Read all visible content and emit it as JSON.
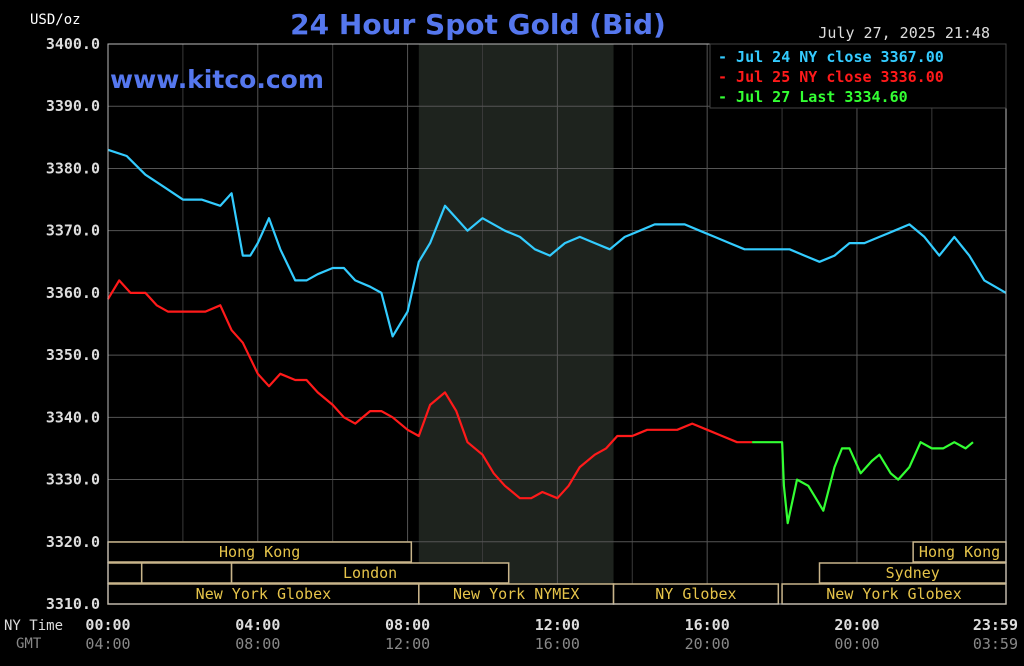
{
  "chart_data": {
    "type": "line",
    "title": "24 Hour Spot Gold (Bid)",
    "ylabel": "USD/oz",
    "watermark": "www.kitco.com",
    "timestamp": "July 27, 2025 21:48",
    "ylim": [
      3310,
      3400
    ],
    "yticks": [
      "3400.0",
      "3390.0",
      "3380.0",
      "3370.0",
      "3360.0",
      "3350.0",
      "3340.0",
      "3330.0",
      "3320.0",
      "3310.0"
    ],
    "x_row_labels": {
      "ny": "NY Time",
      "gmt": "GMT"
    },
    "x_ticks_ny": [
      "00:00",
      "04:00",
      "08:00",
      "12:00",
      "16:00",
      "20:00",
      "23:59"
    ],
    "x_ticks_gmt": [
      "04:00",
      "08:00",
      "12:00",
      "16:00",
      "20:00",
      "00:00",
      "03:59"
    ],
    "legend": [
      {
        "label": "Jul 24 NY close 3367.00",
        "color": "#33ccff"
      },
      {
        "label": "Jul 25 NY close 3336.00",
        "color": "#ff1a1a"
      },
      {
        "label": "Jul 27 Last 3334.60",
        "color": "#33ff33"
      }
    ],
    "series": [
      {
        "name": "Jul 24",
        "color": "#33ccff",
        "x": [
          0,
          0.5,
          1,
          1.5,
          2,
          2.5,
          3,
          3.3,
          3.6,
          3.8,
          4,
          4.3,
          4.6,
          5,
          5.3,
          5.6,
          6,
          6.3,
          6.6,
          7,
          7.3,
          7.6,
          8,
          8.3,
          8.6,
          9,
          9.3,
          9.6,
          10,
          10.3,
          10.6,
          11,
          11.4,
          11.8,
          12.2,
          12.6,
          13,
          13.4,
          13.8,
          14.2,
          14.6,
          15,
          15.4,
          15.8,
          16.2,
          16.6,
          17,
          17.4,
          17.8,
          18.2,
          18.6,
          19,
          19.4,
          19.8,
          20.2,
          20.6,
          21,
          21.4,
          21.8,
          22.2,
          22.6,
          23,
          23.4,
          23.98
        ],
        "y": [
          3383,
          3382,
          3379,
          3377,
          3375,
          3375,
          3374,
          3376,
          3366,
          3366,
          3368,
          3372,
          3367,
          3362,
          3362,
          3363,
          3364,
          3364,
          3362,
          3361,
          3360,
          3353,
          3357,
          3365,
          3368,
          3374,
          3372,
          3370,
          3372,
          3371,
          3370,
          3369,
          3367,
          3366,
          3368,
          3369,
          3368,
          3367,
          3369,
          3370,
          3371,
          3371,
          3371,
          3370,
          3369,
          3368,
          3367,
          3367,
          3367,
          3367,
          3366,
          3365,
          3366,
          3368,
          3368,
          3369,
          3370,
          3371,
          3369,
          3366,
          3369,
          3366,
          3362,
          3360
        ]
      },
      {
        "name": "Jul 25",
        "color": "#ff1a1a",
        "x": [
          0,
          0.3,
          0.6,
          1,
          1.3,
          1.6,
          2,
          2.3,
          2.6,
          3,
          3.3,
          3.6,
          4,
          4.3,
          4.6,
          5,
          5.3,
          5.6,
          6,
          6.3,
          6.6,
          7,
          7.3,
          7.6,
          8,
          8.3,
          8.6,
          9,
          9.3,
          9.6,
          10,
          10.3,
          10.6,
          11,
          11.3,
          11.6,
          12,
          12.3,
          12.6,
          13,
          13.3,
          13.6,
          14,
          14.4,
          14.8,
          15.2,
          15.6,
          16,
          16.4,
          16.8,
          17.2
        ],
        "y": [
          3359,
          3362,
          3360,
          3360,
          3358,
          3357,
          3357,
          3357,
          3357,
          3358,
          3354,
          3352,
          3347,
          3345,
          3347,
          3346,
          3346,
          3344,
          3342,
          3340,
          3339,
          3341,
          3341,
          3340,
          3338,
          3337,
          3342,
          3344,
          3341,
          3336,
          3334,
          3331,
          3329,
          3327,
          3327,
          3328,
          3327,
          3329,
          3332,
          3334,
          3335,
          3337,
          3337,
          3338,
          3338,
          3338,
          3339,
          3338,
          3337,
          3336,
          3336
        ]
      },
      {
        "name": "Jul 27",
        "color": "#33ff33",
        "x": [
          17.2,
          17.5,
          17.8,
          18,
          18.05,
          18.15,
          18.4,
          18.7,
          18.9,
          19.1,
          19.4,
          19.6,
          19.8,
          20.1,
          20.4,
          20.6,
          20.9,
          21.1,
          21.4,
          21.7,
          22,
          22.3,
          22.6,
          22.9,
          23.1
        ],
        "y": [
          3336,
          3336,
          3336,
          3336,
          3329,
          3323,
          3330,
          3329,
          3327,
          3325,
          3332,
          3335,
          3335,
          3331,
          3333,
          3334,
          3331,
          3330,
          3332,
          3336,
          3335,
          3335,
          3336,
          3335,
          3336
        ]
      }
    ],
    "sessions": {
      "row1": [
        {
          "label": "Hong Kong",
          "start": 0,
          "end": 8.1
        },
        {
          "label": "Hong Kong",
          "start": 21.5,
          "end": 23.98
        }
      ],
      "row2": [
        {
          "label": "",
          "start": 0,
          "end": 0.9
        },
        {
          "label": "",
          "start": 0.9,
          "end": 3.3
        },
        {
          "label": "London",
          "start": 3.3,
          "end": 10.7
        },
        {
          "label": "Sydney",
          "start": 19.0,
          "end": 23.98
        }
      ],
      "row3": [
        {
          "label": "New York Globex",
          "start": 0,
          "end": 8.3
        },
        {
          "label": "New York NYMEX",
          "start": 8.3,
          "end": 13.5
        },
        {
          "label": "NY Globex",
          "start": 13.5,
          "end": 17.9
        },
        {
          "label": "New York Globex",
          "start": 18.0,
          "end": 23.98
        }
      ]
    }
  }
}
